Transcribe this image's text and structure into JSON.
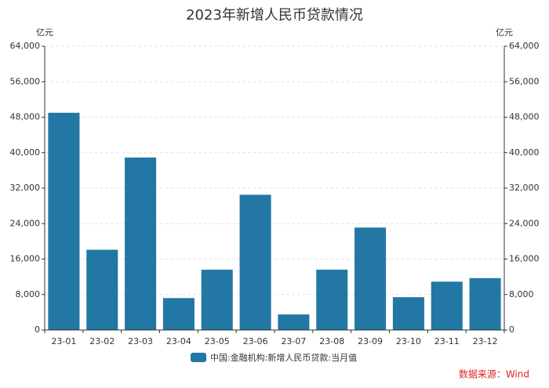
{
  "chart_data": {
    "type": "bar",
    "title": "2023年新增人民币贷款情况",
    "y_unit": "亿元",
    "categories": [
      "23-01",
      "23-02",
      "23-03",
      "23-04",
      "23-05",
      "23-06",
      "23-07",
      "23-08",
      "23-09",
      "23-10",
      "23-11",
      "23-12"
    ],
    "series": [
      {
        "name": "中国:金融机构:新增人民币贷款:当月值",
        "color": "#2277a4",
        "values": [
          49000,
          18100,
          38900,
          7200,
          13600,
          30500,
          3500,
          13600,
          23100,
          7400,
          10900,
          11700
        ]
      }
    ],
    "ylim": [
      0,
      64000
    ],
    "yticks": [
      0,
      {
        "value": 8000,
        "label": "8,000"
      },
      {
        "value": 16000,
        "label": "16,000"
      },
      {
        "value": 24000,
        "label": "24,000"
      },
      {
        "value": 32000,
        "label": "32,000"
      },
      {
        "value": 40000,
        "label": "40,000"
      },
      {
        "value": 48000,
        "label": "48,000"
      },
      {
        "value": 56000,
        "label": "56,000"
      },
      {
        "value": 64000,
        "label": "64,000"
      }
    ],
    "grid": true,
    "legend": "bottom",
    "source": "数据来源：Wind"
  }
}
